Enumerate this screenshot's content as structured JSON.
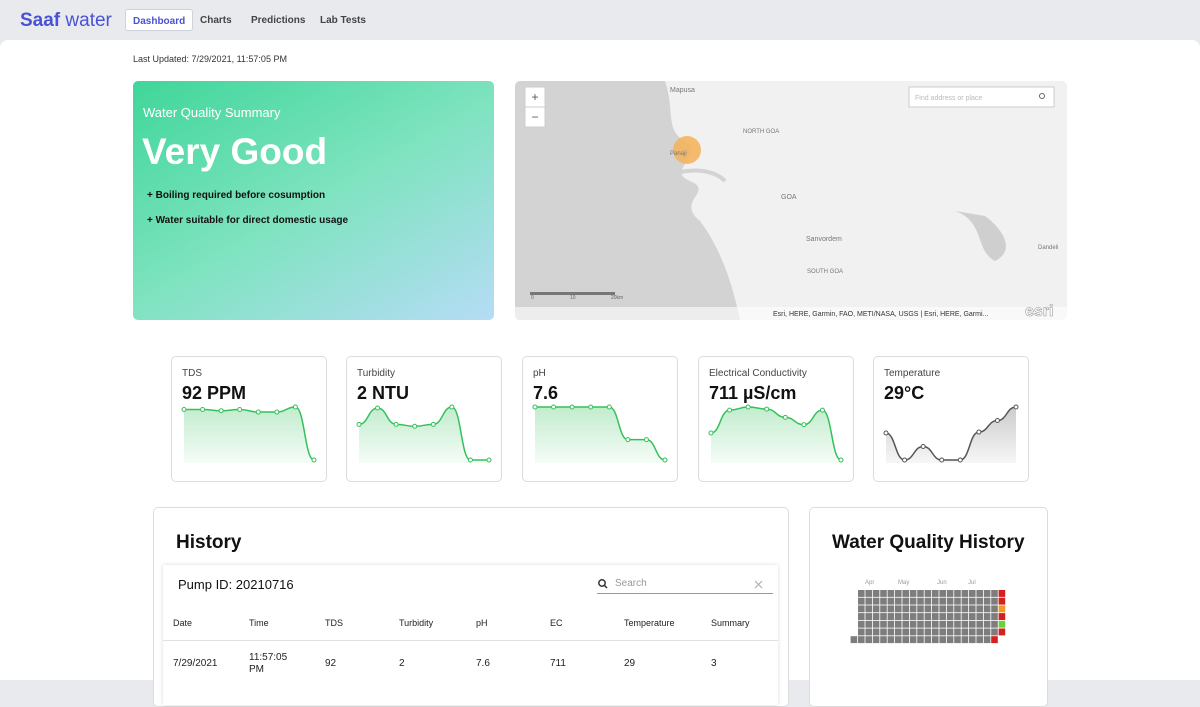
{
  "nav": {
    "logo_bold": "Saaf",
    "logo_light": "water",
    "tabs": [
      "Dashboard",
      "Charts",
      "Predictions",
      "Lab Tests"
    ]
  },
  "last_updated": "Last Updated: 7/29/2021, 11:57:05 PM",
  "summary": {
    "title": "Water Quality Summary",
    "status": "Very Good",
    "notes": [
      "+ Boiling required before cosumption",
      "+ Water suitable for direct domestic usage"
    ]
  },
  "map": {
    "search_placeholder": "Find address or place",
    "zoom": [
      "+",
      "−"
    ],
    "labels": [
      "Mapusa",
      "Panaji",
      "NORTH GOA",
      "GOA",
      "Sanvordem",
      "SOUTH GOA",
      "Dandeli"
    ],
    "scale_labels": [
      "0",
      "10",
      "20km"
    ],
    "attribution": "Esri, HERE, Garmin, FAO, METI/NASA, USGS | Esri, HERE, Garmi...",
    "logo": "esri"
  },
  "metrics": [
    {
      "name": "TDS",
      "value": "92 PPM",
      "color": "#33c15a",
      "trend": [
        49,
        49,
        48,
        49,
        47,
        47,
        51,
        9
      ]
    },
    {
      "name": "Turbidity",
      "value": "2 NTU",
      "color": "#33c15a",
      "trend": [
        38,
        55,
        38,
        36,
        38,
        56,
        1,
        1
      ]
    },
    {
      "name": "pH",
      "value": "7.6",
      "color": "#33c15a",
      "trend": [
        56,
        56,
        56,
        56,
        56,
        24,
        24,
        4
      ]
    },
    {
      "name": "Electrical Conductivity",
      "value": "711 µS/cm",
      "color": "#33c15a",
      "trend": [
        30,
        52,
        55,
        53,
        45,
        38,
        52,
        4
      ]
    },
    {
      "name": "Temperature",
      "value": "29°C",
      "color": "#555555",
      "trend": [
        29,
        1,
        15,
        1,
        1,
        30,
        42,
        56
      ]
    }
  ],
  "history": {
    "title": "History",
    "pump_id": "Pump ID: 20210716",
    "search_placeholder": "Search",
    "columns": [
      "Date",
      "Time",
      "TDS",
      "Turbidity",
      "pH",
      "EC",
      "Temperature",
      "Summary"
    ],
    "rows": [
      [
        "7/29/2021",
        "11:57:05 PM",
        92,
        2,
        7.6,
        711,
        29,
        3
      ]
    ]
  },
  "quality_history": {
    "title": "Water Quality History",
    "months": [
      "Apr",
      "May",
      "Jun",
      "Jul"
    ]
  }
}
